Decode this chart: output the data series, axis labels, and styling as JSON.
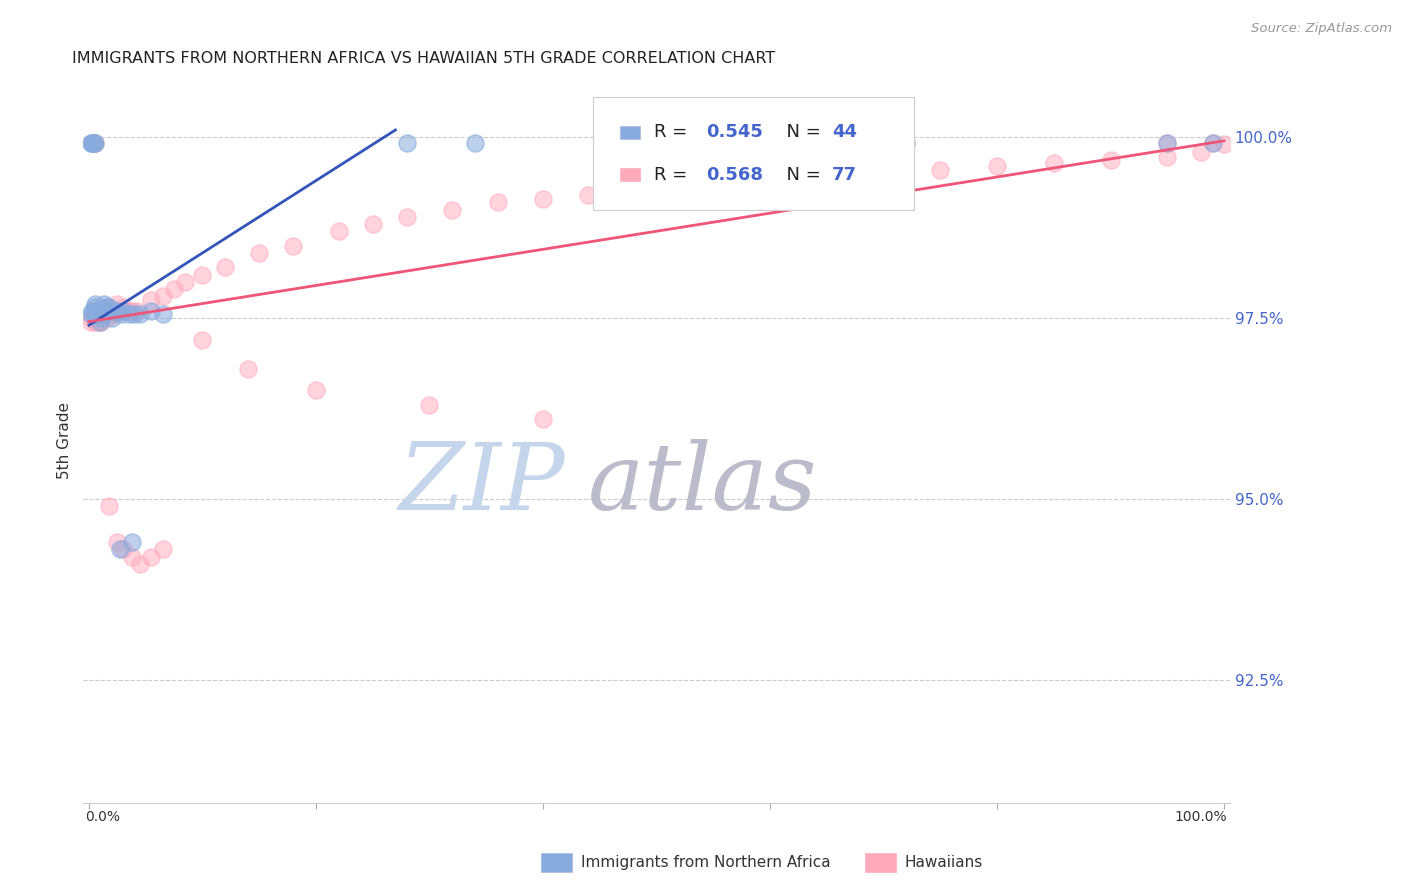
{
  "title": "IMMIGRANTS FROM NORTHERN AFRICA VS HAWAIIAN 5TH GRADE CORRELATION CHART",
  "source": "Source: ZipAtlas.com",
  "ylabel": "5th Grade",
  "blue_color": "#88AADD",
  "pink_color": "#FFAABB",
  "line_blue": "#3355BB",
  "line_pink": "#EE5577",
  "watermark_zip_color": "#BBCCEE",
  "watermark_atlas_color": "#BBBBCC",
  "ytick_labels": [
    "100.0%",
    "97.5%",
    "95.0%",
    "92.5%"
  ],
  "ytick_values": [
    1.0,
    0.975,
    0.95,
    0.925
  ],
  "ymin": 0.908,
  "ymax": 1.008,
  "xmin": -0.005,
  "xmax": 1.005,
  "legend_R_color": "#4466CC",
  "legend_N_color": "#4466CC",
  "legend_label_color": "#222222"
}
